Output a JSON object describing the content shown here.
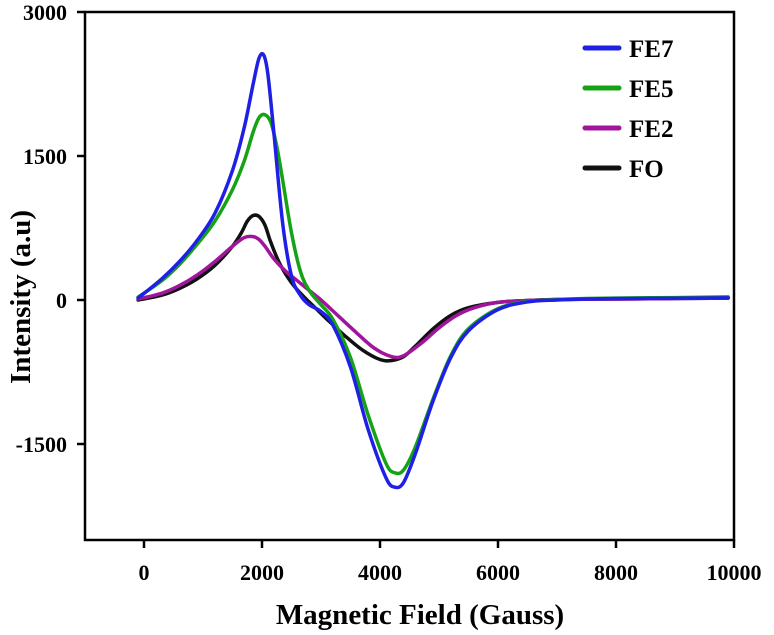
{
  "chart_data": {
    "type": "line",
    "title": "",
    "xlabel": "Magnetic Field (Gauss)",
    "ylabel": "Intensity (a.u)",
    "xlim": [
      -1000,
      10000
    ],
    "ylim": [
      -2500,
      3000
    ],
    "xticks": [
      0,
      2000,
      4000,
      6000,
      8000,
      10000
    ],
    "yticks": [
      -1500,
      0,
      1500,
      3000
    ],
    "xtick_labels": [
      "0",
      "2000",
      "4000",
      "6000",
      "8000",
      "10000"
    ],
    "ytick_labels": [
      "-1500",
      "0",
      "1500",
      "3000"
    ],
    "grid": false,
    "legend_position": "top-right",
    "series": [
      {
        "name": "FE7",
        "color": "#1f1fe6",
        "x": [
          -100,
          300,
          600,
          900,
          1200,
          1500,
          1700,
          1850,
          1950,
          2030,
          2100,
          2200,
          2350,
          2500,
          2650,
          2800,
          3000,
          3200,
          3500,
          3800,
          4100,
          4250,
          4400,
          4600,
          4900,
          5200,
          5500,
          6000,
          6500,
          7000,
          7500,
          8000,
          9000,
          9900
        ],
        "y": [
          20,
          220,
          400,
          620,
          900,
          1350,
          1800,
          2250,
          2520,
          2550,
          2350,
          1750,
          800,
          250,
          50,
          -50,
          -120,
          -260,
          -700,
          -1350,
          -1850,
          -1950,
          -1900,
          -1600,
          -1050,
          -600,
          -320,
          -100,
          -20,
          0,
          10,
          15,
          18,
          22
        ]
      },
      {
        "name": "FE5",
        "color": "#15a315",
        "x": [
          -100,
          300,
          600,
          900,
          1200,
          1500,
          1700,
          1850,
          1950,
          2050,
          2150,
          2250,
          2350,
          2500,
          2650,
          2800,
          3000,
          3200,
          3500,
          3800,
          4100,
          4250,
          4400,
          4600,
          4900,
          5200,
          5500,
          6000,
          6500,
          7000,
          7500,
          8000,
          9000,
          9900
        ],
        "y": [
          30,
          200,
          370,
          580,
          820,
          1150,
          1450,
          1750,
          1900,
          1930,
          1850,
          1600,
          1250,
          700,
          300,
          100,
          -50,
          -200,
          -600,
          -1200,
          -1700,
          -1800,
          -1770,
          -1530,
          -1030,
          -580,
          -300,
          -90,
          -15,
          5,
          15,
          20,
          25,
          32
        ]
      },
      {
        "name": "FE2",
        "color": "#a0159b",
        "x": [
          -100,
          300,
          600,
          900,
          1200,
          1500,
          1700,
          1850,
          1950,
          2050,
          2200,
          2400,
          2600,
          2800,
          3000,
          3300,
          3600,
          3900,
          4200,
          4400,
          4700,
          5000,
          5300,
          5600,
          6000,
          6500,
          7000,
          8000,
          9000,
          9900
        ],
        "y": [
          10,
          70,
          150,
          260,
          400,
          560,
          650,
          660,
          630,
          560,
          430,
          300,
          200,
          100,
          0,
          -170,
          -340,
          -500,
          -590,
          -580,
          -450,
          -290,
          -160,
          -80,
          -25,
          -5,
          5,
          10,
          15,
          20
        ],
        "legend_label_text": "FE2"
      },
      {
        "name": "FO",
        "color": "#111111",
        "x": [
          -100,
          300,
          600,
          900,
          1200,
          1500,
          1650,
          1750,
          1850,
          1950,
          2050,
          2150,
          2300,
          2500,
          2700,
          2900,
          3100,
          3400,
          3700,
          4000,
          4200,
          4400,
          4600,
          4900,
          5200,
          5500,
          6000,
          6500,
          7000,
          8000,
          9000,
          9900
        ],
        "y": [
          0,
          50,
          120,
          220,
          360,
          560,
          700,
          820,
          880,
          870,
          780,
          600,
          380,
          180,
          40,
          -80,
          -200,
          -370,
          -520,
          -620,
          -630,
          -590,
          -480,
          -300,
          -160,
          -80,
          -25,
          -5,
          5,
          10,
          15,
          20
        ]
      }
    ]
  }
}
